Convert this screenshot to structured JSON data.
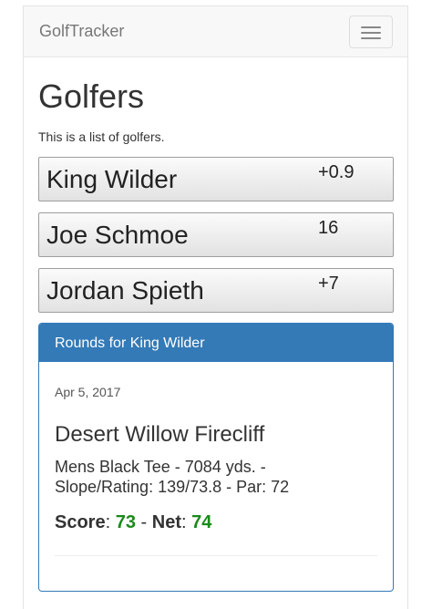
{
  "navbar": {
    "brand": "GolfTracker"
  },
  "page": {
    "title": "Golfers",
    "description": "This is a list of golfers."
  },
  "golfers": [
    {
      "name": "King Wilder",
      "handicap": "+0.9"
    },
    {
      "name": "Joe Schmoe",
      "handicap": "16"
    },
    {
      "name": "Jordan Spieth",
      "handicap": "+7"
    }
  ],
  "rounds_panel": {
    "title": "Rounds for King Wilder",
    "rounds": [
      {
        "date": "Apr 5, 2017",
        "course": "Desert Willow Firecliff",
        "tee_info": "Mens Black Tee - 7084 yds. - Slope/Rating: 139/73.8 - Par: 72",
        "score_label": "Score",
        "score": "73",
        "separator": "-",
        "net_label": "Net",
        "net": "74"
      }
    ]
  },
  "colors": {
    "panel_primary": "#337ab7",
    "score_green": "#1a8a1a"
  }
}
